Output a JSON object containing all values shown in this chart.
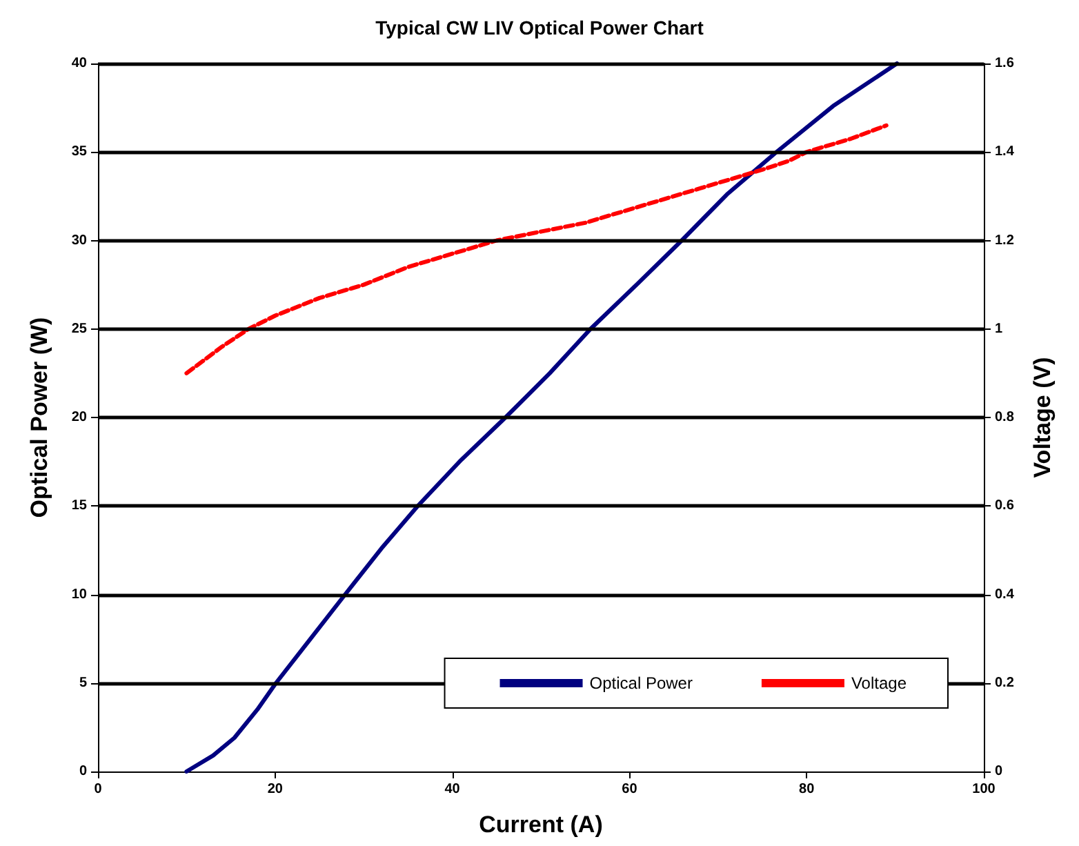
{
  "chart_data": {
    "type": "line",
    "title": "Typical CW LIV Optical Power Chart",
    "xlabel": "Current (A)",
    "ylabel": "Optical Power (W)",
    "y2label": "Voltage (V)",
    "xlim": [
      0,
      100
    ],
    "xticks": [
      0,
      20,
      40,
      60,
      80,
      100
    ],
    "ylim": [
      0,
      40
    ],
    "yticks": [
      0,
      5,
      10,
      15,
      20,
      25,
      30,
      35,
      40
    ],
    "y2lim": [
      0,
      1.6
    ],
    "y2ticks": [
      0,
      0.2,
      0.4,
      0.6,
      0.8,
      1,
      1.2,
      1.4,
      1.6
    ],
    "grid": "y",
    "legend": "bottom right",
    "marker": "none",
    "series": [
      {
        "name": "Optical Power",
        "color": "#000080",
        "line_style": "solid",
        "x": [
          10,
          13,
          15.4,
          18,
          20.1,
          24,
          27.9,
          32,
          36.1,
          41,
          46,
          51,
          55.6,
          61,
          65.9,
          71,
          76.6,
          83,
          90.2
        ],
        "values": [
          0,
          0.9,
          1.9,
          3.5,
          5,
          7.5,
          10,
          12.6,
          15,
          17.6,
          20,
          22.5,
          25,
          27.6,
          30,
          32.6,
          35,
          37.6,
          40
        ]
      },
      {
        "name": "Voltage",
        "color": "#ff0000",
        "line_style": "dashed",
        "axis": "y2",
        "x": [
          10,
          14,
          17,
          20,
          25,
          30,
          35,
          40,
          45,
          50,
          55,
          60,
          65,
          70,
          75,
          78,
          80,
          85,
          89
        ],
        "values": [
          0.9,
          0.96,
          1.0,
          1.03,
          1.07,
          1.1,
          1.14,
          1.17,
          1.2,
          1.22,
          1.24,
          1.27,
          1.3,
          1.33,
          1.36,
          1.38,
          1.4,
          1.43,
          1.46
        ]
      }
    ]
  }
}
